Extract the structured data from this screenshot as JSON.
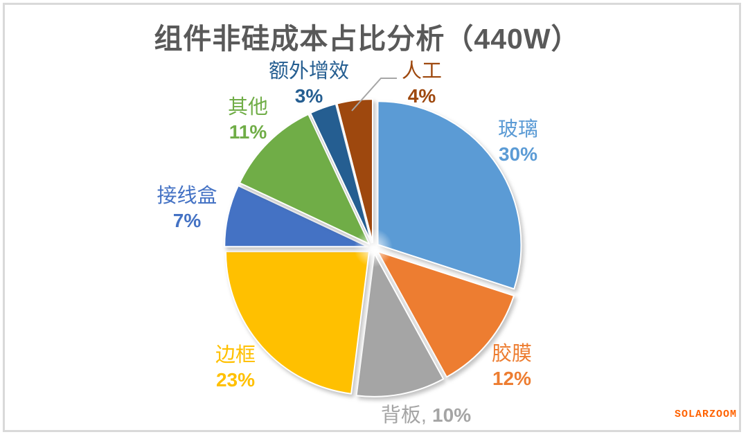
{
  "page": {
    "title": "组件非硅成本占比分析（440W）",
    "watermark": "SOLARZOOM"
  },
  "colors": {
    "background": "#FFFFFF",
    "title": "#595959",
    "border": "#D9D9D9",
    "leader_line": "#A6A6A6",
    "watermark": "#FF6200"
  },
  "chart_data": {
    "type": "pie",
    "title": "组件非硅成本占比分析（440W）",
    "unit": "%",
    "direction": "clockwise",
    "start_angle_deg": 0,
    "exploded": true,
    "legend": "none",
    "label_position": "outside",
    "slices": [
      {
        "id": "glass",
        "label": "玻璃",
        "value": 30,
        "pct_text": "30%",
        "color": "#5B9BD5"
      },
      {
        "id": "eva-film",
        "label": "胶膜",
        "value": 12,
        "pct_text": "12%",
        "color": "#ED7D31"
      },
      {
        "id": "backsheet",
        "label": "背板",
        "value": 10,
        "pct_text": "10%",
        "separator": ", ",
        "color": "#A5A5A5"
      },
      {
        "id": "frame",
        "label": "边框",
        "value": 23,
        "pct_text": "23%",
        "color": "#FFC000"
      },
      {
        "id": "junction-box",
        "label": "接线盒",
        "value": 7,
        "pct_text": "7%",
        "color": "#4472C4"
      },
      {
        "id": "other",
        "label": "其他",
        "value": 11,
        "pct_text": "11%",
        "color": "#70AD47"
      },
      {
        "id": "extra-gain",
        "label": "额外增效",
        "value": 3,
        "pct_text": "3%",
        "color": "#255E91"
      },
      {
        "id": "labor",
        "label": "人工",
        "value": 4,
        "pct_text": "4%",
        "color": "#9E480E"
      }
    ]
  }
}
